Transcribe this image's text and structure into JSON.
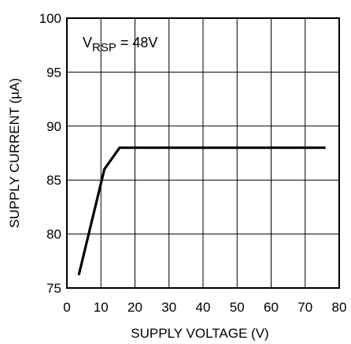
{
  "chart_data": {
    "type": "line",
    "title": "",
    "xlabel": "SUPPLY VOLTAGE (V)",
    "ylabel": "SUPPLY CURRENT (µA)",
    "xlim": [
      0,
      80
    ],
    "ylim": [
      75,
      100
    ],
    "xticks": [
      0,
      10,
      20,
      30,
      40,
      50,
      60,
      70,
      80
    ],
    "yticks": [
      75,
      80,
      85,
      90,
      95,
      100
    ],
    "grid": true,
    "legend": "none",
    "annotation": {
      "prefix": "V",
      "subscript": "RSP",
      "suffix": " = 48V"
    },
    "series": [
      {
        "color": "#000000",
        "x": [
          3.5,
          11,
          15.5,
          76
        ],
        "y": [
          76.2,
          86,
          88,
          88
        ]
      }
    ]
  }
}
